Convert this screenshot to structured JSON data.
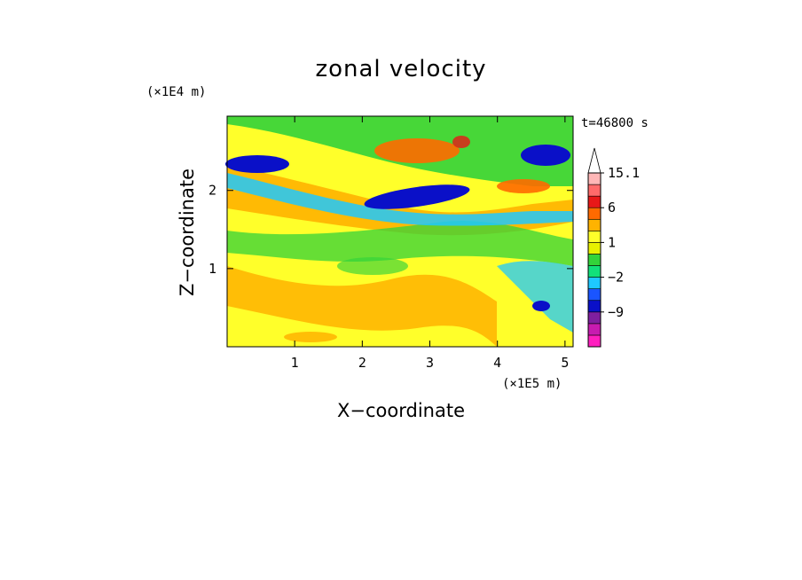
{
  "chart_data": {
    "type": "heatmap",
    "title": "zonal velocity",
    "xlabel": "X−coordinate",
    "ylabel": "Z−coordinate",
    "x_unit": "(×1E5 m)",
    "y_unit": "(×1E4 m)",
    "time_label": "t=46800 s",
    "xlim": [
      0,
      5.12
    ],
    "ylim": [
      0,
      2.95
    ],
    "x_ticks": [
      1,
      2,
      3,
      4,
      5
    ],
    "y_ticks": [
      1,
      2
    ],
    "colorbar": {
      "levels": [
        -15,
        -12,
        -9,
        -6,
        -3,
        -2,
        -1,
        0,
        1,
        2,
        3,
        6,
        9,
        12,
        15.1
      ],
      "labels": [
        "15.1",
        "6",
        "1",
        "−2",
        "−9"
      ],
      "colors": [
        "#ff1fbf",
        "#c71bb0",
        "#7f1f9f",
        "#0a10c8",
        "#1a55ff",
        "#1ec8ff",
        "#12e07a",
        "#33d33a",
        "#e8f000",
        "#ffff2a",
        "#ffb300",
        "#ff6a00",
        "#e81818",
        "#ff6a6a",
        "#ffb7b7"
      ],
      "extend": "max"
    },
    "legend": "right",
    "grid": false
  }
}
